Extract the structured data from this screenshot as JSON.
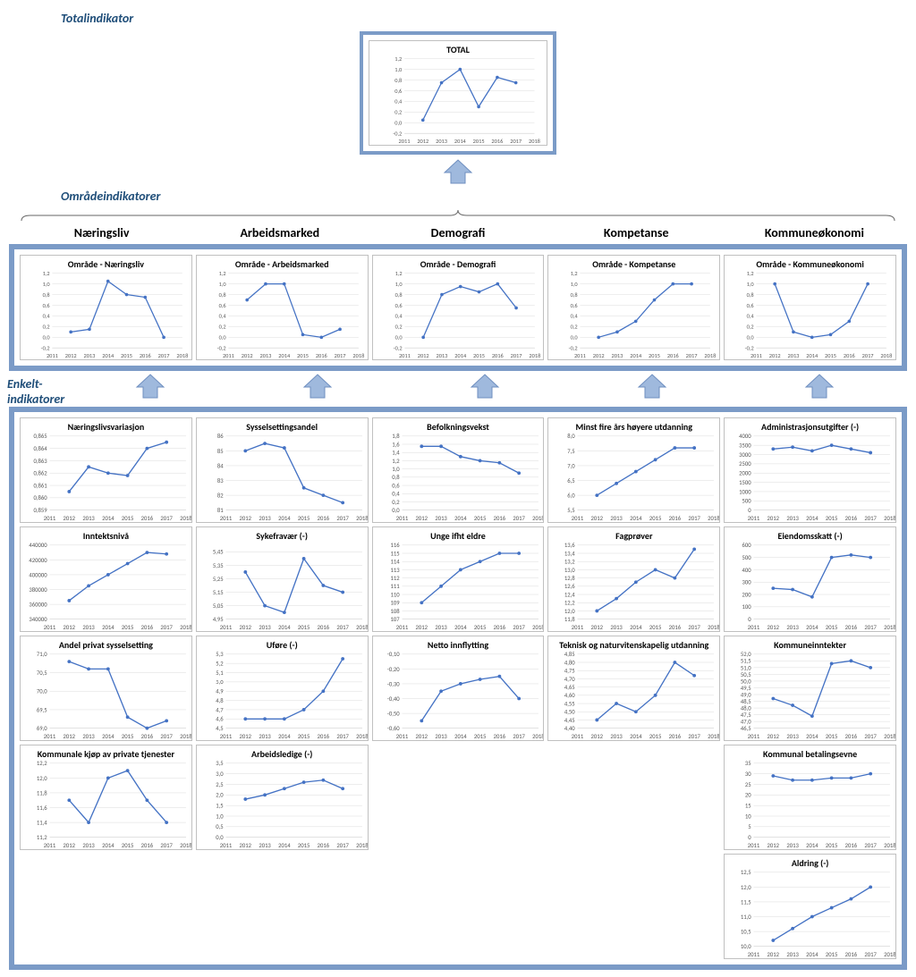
{
  "labels": {
    "total_section": "Totalindikator",
    "area_section": "Områdeindikatorer",
    "single_section": "Enkelt-\nindikatorer",
    "col_headers": [
      "Næringsliv",
      "Arbeidsmarked",
      "Demografi",
      "Kompetanse",
      "Kommuneøkonomi"
    ]
  },
  "style": {
    "frame_color": "#7b9bc7",
    "arrow_fill": "#9fb9dd",
    "arrow_stroke": "#6f8fc0",
    "line_color": "#4472c4",
    "marker_color": "#4472c4",
    "grid_color": "#d9d9d9",
    "axis_label_color": "#595959",
    "axis_label_fontsize": 7,
    "title_fontsize": 10,
    "marker_radius": 2,
    "line_width": 1.4
  },
  "x_years": [
    2011,
    2012,
    2013,
    2014,
    2015,
    2016,
    2017,
    2018
  ],
  "charts": {
    "total": {
      "title": "TOTAL",
      "ylim": [
        -0.2,
        1.2
      ],
      "ystep": 0.2,
      "data": {
        "x": [
          2012,
          2013,
          2014,
          2015,
          2016,
          2017
        ],
        "y": [
          0.05,
          0.75,
          1.0,
          0.3,
          0.85,
          0.75
        ]
      }
    },
    "area": [
      {
        "title": "Område - Næringsliv",
        "ylim": [
          -0.2,
          1.2
        ],
        "ystep": 0.2,
        "data": {
          "x": [
            2012,
            2013,
            2014,
            2015,
            2016,
            2017
          ],
          "y": [
            0.1,
            0.15,
            1.05,
            0.8,
            0.75,
            0.0
          ]
        }
      },
      {
        "title": "Område - Arbeidsmarked",
        "ylim": [
          -0.2,
          1.2
        ],
        "ystep": 0.2,
        "data": {
          "x": [
            2012,
            2013,
            2014,
            2015,
            2016,
            2017
          ],
          "y": [
            0.7,
            1.0,
            1.0,
            0.05,
            0.0,
            0.15
          ]
        }
      },
      {
        "title": "Område - Demografi",
        "ylim": [
          -0.2,
          1.2
        ],
        "ystep": 0.2,
        "data": {
          "x": [
            2012,
            2013,
            2014,
            2015,
            2016,
            2017
          ],
          "y": [
            0.0,
            0.8,
            0.95,
            0.85,
            1.0,
            0.55
          ]
        }
      },
      {
        "title": "Område - Kompetanse",
        "ylim": [
          -0.2,
          1.2
        ],
        "ystep": 0.2,
        "data": {
          "x": [
            2012,
            2013,
            2014,
            2015,
            2016,
            2017
          ],
          "y": [
            0.0,
            0.1,
            0.3,
            0.7,
            1.0,
            1.0
          ]
        }
      },
      {
        "title": "Område - Kommuneøkonomi",
        "ylim": [
          -0.2,
          1.2
        ],
        "ystep": 0.2,
        "data": {
          "x": [
            2012,
            2013,
            2014,
            2015,
            2016,
            2017
          ],
          "y": [
            1.0,
            0.1,
            0.0,
            0.05,
            0.3,
            1.0
          ]
        }
      }
    ],
    "single": [
      [
        {
          "title": "Næringslivsvariasjon",
          "ylim": [
            0.859,
            0.865
          ],
          "ystep": 0.001,
          "data": {
            "x": [
              2012,
              2013,
              2014,
              2015,
              2016,
              2017
            ],
            "y": [
              0.8605,
              0.8625,
              0.862,
              0.8618,
              0.864,
              0.8645
            ]
          }
        },
        {
          "title": "Inntektsnivå",
          "ylim": [
            340000,
            440000
          ],
          "ystep": 20000,
          "data": {
            "x": [
              2012,
              2013,
              2014,
              2015,
              2016,
              2017
            ],
            "y": [
              365000,
              385000,
              400000,
              415000,
              430000,
              428000
            ]
          }
        },
        {
          "title": "Andel privat sysselsetting",
          "ylim": [
            69,
            71
          ],
          "ystep": 0.5,
          "data": {
            "x": [
              2012,
              2013,
              2014,
              2015,
              2016,
              2017
            ],
            "y": [
              70.8,
              70.6,
              70.6,
              69.3,
              69.0,
              69.2
            ]
          }
        },
        {
          "title": "Kommunale kjøp av private tjenester",
          "ylim": [
            11.2,
            12.2
          ],
          "ystep": 0.2,
          "data": {
            "x": [
              2012,
              2013,
              2014,
              2015,
              2016,
              2017
            ],
            "y": [
              11.7,
              11.4,
              12.0,
              12.1,
              11.7,
              11.4
            ]
          }
        }
      ],
      [
        {
          "title": "Sysselsettingsandel",
          "ylim": [
            81,
            86
          ],
          "ystep": 1,
          "data": {
            "x": [
              2012,
              2013,
              2014,
              2015,
              2016,
              2017
            ],
            "y": [
              85,
              85.5,
              85.2,
              82.5,
              82.0,
              81.5
            ]
          }
        },
        {
          "title": "Sykefravær (-)",
          "ylim": [
            4.95,
            5.5
          ],
          "ystep": 0.1,
          "decimals": 2,
          "data": {
            "x": [
              2012,
              2013,
              2014,
              2015,
              2016,
              2017
            ],
            "y": [
              5.3,
              5.05,
              5.0,
              5.4,
              5.2,
              5.15
            ]
          }
        },
        {
          "title": "Uføre (-)",
          "ylim": [
            4.5,
            5.3
          ],
          "ystep": 0.1,
          "data": {
            "x": [
              2012,
              2013,
              2014,
              2015,
              2016,
              2017
            ],
            "y": [
              4.6,
              4.6,
              4.6,
              4.7,
              4.9,
              5.25
            ]
          }
        },
        {
          "title": "Arbeidsledige (-)",
          "ylim": [
            0,
            3.5
          ],
          "ystep": 0.5,
          "data": {
            "x": [
              2012,
              2013,
              2014,
              2015,
              2016,
              2017
            ],
            "y": [
              1.8,
              2.0,
              2.3,
              2.6,
              2.7,
              2.3
            ]
          }
        }
      ],
      [
        {
          "title": "Befolkningsvekst",
          "ylim": [
            0,
            1.8
          ],
          "ystep": 0.2,
          "data": {
            "x": [
              2012,
              2013,
              2014,
              2015,
              2016,
              2017
            ],
            "y": [
              1.55,
              1.55,
              1.3,
              1.2,
              1.15,
              0.9
            ]
          }
        },
        {
          "title": "Unge ifht eldre",
          "ylim": [
            107,
            116
          ],
          "ystep": 1,
          "data": {
            "x": [
              2012,
              2013,
              2014,
              2015,
              2016,
              2017
            ],
            "y": [
              109,
              111,
              113,
              114,
              115,
              115
            ]
          }
        },
        {
          "title": "Netto innflytting",
          "ylim": [
            -0.6,
            -0.1
          ],
          "ystep": 0.1,
          "decimals": 2,
          "data": {
            "x": [
              2012,
              2013,
              2014,
              2015,
              2016,
              2017
            ],
            "y": [
              -0.55,
              -0.35,
              -0.3,
              -0.27,
              -0.25,
              -0.4
            ]
          }
        }
      ],
      [
        {
          "title": "Minst fire års høyere utdanning",
          "ylim": [
            5.5,
            8.0
          ],
          "ystep": 0.5,
          "data": {
            "x": [
              2012,
              2013,
              2014,
              2015,
              2016,
              2017
            ],
            "y": [
              6.0,
              6.4,
              6.8,
              7.2,
              7.6,
              7.6
            ]
          }
        },
        {
          "title": "Fagprøver",
          "ylim": [
            11.8,
            13.6
          ],
          "ystep": 0.2,
          "data": {
            "x": [
              2012,
              2013,
              2014,
              2015,
              2016,
              2017
            ],
            "y": [
              12.0,
              12.3,
              12.7,
              13.0,
              12.8,
              13.5
            ]
          }
        },
        {
          "title": "Teknisk og naturvitenskapelig utdanning",
          "ylim": [
            4.4,
            4.85
          ],
          "ystep": 0.05,
          "decimals": 2,
          "data": {
            "x": [
              2012,
              2013,
              2014,
              2015,
              2016,
              2017
            ],
            "y": [
              4.45,
              4.55,
              4.5,
              4.6,
              4.8,
              4.72
            ]
          }
        }
      ],
      [
        {
          "title": "Administrasjonsutgifter (-)",
          "ylim": [
            0,
            4000
          ],
          "ystep": 500,
          "data": {
            "x": [
              2012,
              2013,
              2014,
              2015,
              2016,
              2017
            ],
            "y": [
              3300,
              3400,
              3200,
              3500,
              3300,
              3100
            ]
          }
        },
        {
          "title": "Eiendomsskatt (-)",
          "ylim": [
            0,
            600
          ],
          "ystep": 100,
          "data": {
            "x": [
              2012,
              2013,
              2014,
              2015,
              2016,
              2017
            ],
            "y": [
              250,
              240,
              180,
              500,
              520,
              500
            ]
          }
        },
        {
          "title": "Kommuneinntekter",
          "ylim": [
            46.5,
            52
          ],
          "ystep": 0.5,
          "data": {
            "x": [
              2012,
              2013,
              2014,
              2015,
              2016,
              2017
            ],
            "y": [
              48.7,
              48.2,
              47.4,
              51.3,
              51.5,
              51.0
            ]
          }
        },
        {
          "title": "Kommunal betalingsevne",
          "ylim": [
            0,
            35
          ],
          "ystep": 5,
          "data": {
            "x": [
              2012,
              2013,
              2014,
              2015,
              2016,
              2017
            ],
            "y": [
              29,
              27,
              27,
              28,
              28,
              30
            ]
          }
        },
        {
          "title": "Aldring (-)",
          "ylim": [
            10,
            12.5
          ],
          "ystep": 0.5,
          "data": {
            "x": [
              2012,
              2013,
              2014,
              2015,
              2016,
              2017
            ],
            "y": [
              10.2,
              10.6,
              11.0,
              11.3,
              11.6,
              12.0
            ]
          }
        }
      ]
    ]
  }
}
